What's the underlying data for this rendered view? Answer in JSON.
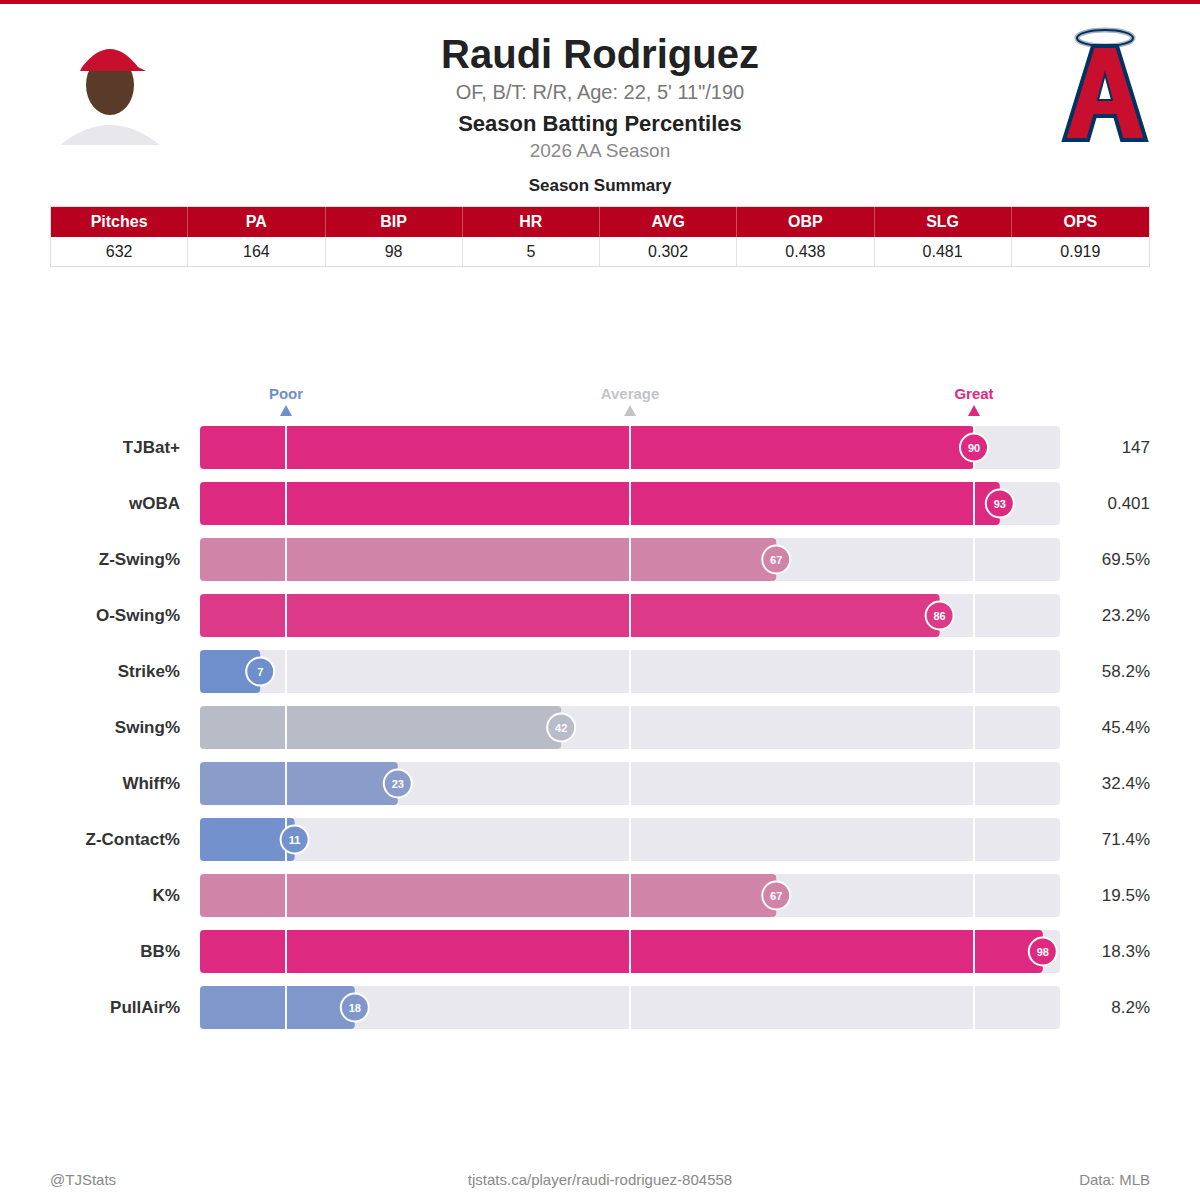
{
  "header": {
    "name": "Raudi Rodriguez",
    "info": "OF, B/T: R/R, Age: 22, 5' 11\"/190"
  },
  "table": {
    "title": "Season Summary",
    "columns": [
      "Pitches",
      "PA",
      "BIP",
      "HR",
      "AVG",
      "OBP",
      "SLG",
      "OPS"
    ],
    "rows": [
      [
        "632",
        "164",
        "98",
        "5",
        "0.302",
        "0.438",
        "0.481",
        "0.919"
      ]
    ]
  },
  "chart_data": {
    "type": "bar",
    "orientation": "horizontal",
    "title": "Season Batting Percentiles",
    "subtitle": "2026 AA Season",
    "categories": [
      "TJBat+",
      "wOBA",
      "Z-Swing%",
      "O-Swing%",
      "Strike%",
      "Swing%",
      "Whiff%",
      "Z-Contact%",
      "K%",
      "BB%",
      "PullAir%"
    ],
    "values": [
      90,
      93,
      67,
      86,
      7,
      42,
      23,
      11,
      67,
      98,
      18
    ],
    "colors": [
      "#dd2a80",
      "#dd2a80",
      "#d084a8",
      "#dc3a88",
      "#6f8fcc",
      "#b7bcc7",
      "#8a9dca",
      "#7391cc",
      "#d084a8",
      "#dd2a80",
      "#7f97cb"
    ],
    "stats": [
      "147",
      "0.401",
      "69.5%",
      "23.2%",
      "58.2%",
      "45.4%",
      "32.4%",
      "71.4%",
      "19.5%",
      "18.3%",
      "8.2%"
    ],
    "xlim": [
      0,
      100
    ],
    "tick_labels": "y",
    "data_labels": true,
    "reference_lines": [
      {
        "value": 10,
        "label": "Poor",
        "color": "#6f8fcc"
      },
      {
        "value": 50,
        "label": "Average",
        "color": "#c4c4c8"
      },
      {
        "value": 90,
        "label": "Great",
        "color": "#dd2a80"
      }
    ]
  },
  "footer": {
    "left": "@TJStats",
    "center": "tjstats.ca/player/raudi-rodriguez-804558",
    "right": "Data: MLB"
  }
}
